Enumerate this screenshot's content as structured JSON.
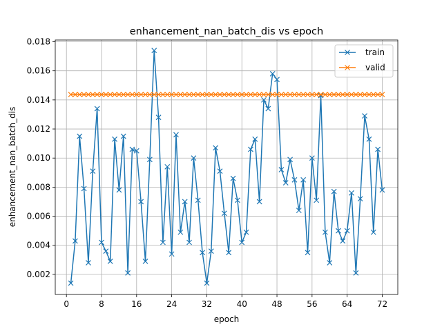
{
  "chart_data": {
    "type": "line",
    "title": "enhancement_nan_batch_dis vs epoch",
    "xlabel": "epoch",
    "ylabel": "enhancement_nan_batch_dis",
    "xlim": [
      -2.55,
      75.55
    ],
    "ylim": [
      0.00062,
      0.01812
    ],
    "xticks": [
      0,
      8,
      16,
      24,
      32,
      40,
      48,
      56,
      64,
      72
    ],
    "yticks": [
      0.002,
      0.004,
      0.006,
      0.008,
      0.01,
      0.012,
      0.014,
      0.016,
      0.018
    ],
    "ytick_labels": [
      "0.002",
      "0.004",
      "0.006",
      "0.008",
      "0.010",
      "0.012",
      "0.014",
      "0.016",
      "0.018"
    ],
    "grid": true,
    "legend_position": "top-right",
    "marker": "x",
    "x": [
      1,
      2,
      3,
      4,
      5,
      6,
      7,
      8,
      9,
      10,
      11,
      12,
      13,
      14,
      15,
      16,
      17,
      18,
      19,
      20,
      21,
      22,
      23,
      24,
      25,
      26,
      27,
      28,
      29,
      30,
      31,
      32,
      33,
      34,
      35,
      36,
      37,
      38,
      39,
      40,
      41,
      42,
      43,
      44,
      45,
      46,
      47,
      48,
      49,
      50,
      51,
      52,
      53,
      54,
      55,
      56,
      57,
      58,
      59,
      60,
      61,
      62,
      63,
      64,
      65,
      66,
      67,
      68,
      69,
      70,
      71,
      72
    ],
    "series": [
      {
        "name": "train",
        "color": "#1f77b4",
        "values": [
          0.0014,
          0.0043,
          0.0115,
          0.0079,
          0.0028,
          0.0091,
          0.0134,
          0.0042,
          0.0036,
          0.0029,
          0.0113,
          0.0078,
          0.0115,
          0.0021,
          0.0106,
          0.0105,
          0.007,
          0.0029,
          0.0099,
          0.0174,
          0.0128,
          0.0042,
          0.0094,
          0.0034,
          0.0116,
          0.0049,
          0.007,
          0.0042,
          0.01,
          0.0071,
          0.0035,
          0.0014,
          0.0036,
          0.0107,
          0.0091,
          0.0062,
          0.0035,
          0.0086,
          0.0071,
          0.0042,
          0.0049,
          0.0106,
          0.0113,
          0.007,
          0.014,
          0.0134,
          0.0158,
          0.0154,
          0.0092,
          0.0083,
          0.0099,
          0.0085,
          0.0064,
          0.0085,
          0.0035,
          0.01,
          0.0071,
          0.0143,
          0.0049,
          0.0028,
          0.0077,
          0.005,
          0.0043,
          0.005,
          0.0076,
          0.0021,
          0.0072,
          0.0129,
          0.0113,
          0.0049,
          0.0106,
          0.0078
        ]
      },
      {
        "name": "valid",
        "color": "#ff7f0e",
        "values": [
          0.01437,
          0.01437,
          0.01437,
          0.01437,
          0.01437,
          0.01437,
          0.01437,
          0.01437,
          0.01437,
          0.01437,
          0.01437,
          0.01437,
          0.01437,
          0.01437,
          0.01437,
          0.01437,
          0.01437,
          0.01437,
          0.01437,
          0.01437,
          0.01437,
          0.01437,
          0.01437,
          0.01437,
          0.01437,
          0.01437,
          0.01437,
          0.01437,
          0.01437,
          0.01437,
          0.01437,
          0.01437,
          0.01437,
          0.01437,
          0.01437,
          0.01437,
          0.01437,
          0.01437,
          0.01437,
          0.01437,
          0.01437,
          0.01437,
          0.01437,
          0.01437,
          0.01437,
          0.01437,
          0.01437,
          0.01437,
          0.01437,
          0.01437,
          0.01437,
          0.01437,
          0.01437,
          0.01437,
          0.01437,
          0.01437,
          0.01437,
          0.01437,
          0.01437,
          0.01437,
          0.01437,
          0.01437,
          0.01437,
          0.01437,
          0.01437,
          0.01437,
          0.01437,
          0.01437,
          0.01437,
          0.01437,
          0.01437,
          0.01437
        ]
      }
    ]
  }
}
